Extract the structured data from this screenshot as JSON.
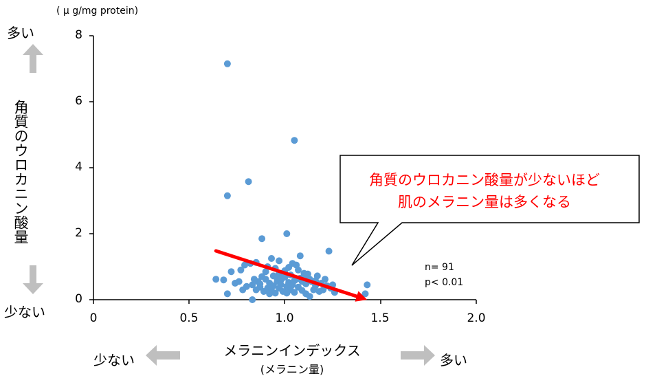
{
  "chart_data": {
    "type": "scatter",
    "title": "",
    "xlabel": "メラニンインデックス",
    "xlabel_sub": "(メラニン量)",
    "ylabel": "角質のウロカニン酸量",
    "y_unit": "( μ g/mg protein)",
    "xlim": [
      0,
      2.0
    ],
    "ylim": [
      0,
      8
    ],
    "x_ticks": [
      "0",
      "0.5",
      "1.0",
      "1.5",
      "2.0"
    ],
    "y_ticks": [
      "0",
      "2",
      "4",
      "6",
      "8"
    ],
    "grid": false,
    "point_color": "#5b9bd5",
    "trend_color": "#ff0000",
    "trend_line": {
      "x": [
        0.64,
        1.43
      ],
      "y": [
        1.48,
        0.0
      ],
      "arrow": true
    },
    "annotation": {
      "line1": "角質のウロカニン酸量が少ないほど",
      "line2": "肌のメラニン量は多くなる"
    },
    "stats": {
      "n": "n= 91",
      "p": "p< 0.01"
    },
    "axis_hints": {
      "y_high": "多い",
      "y_low": "少ない",
      "x_low": "少ない",
      "x_high": "多い"
    },
    "points": [
      {
        "x": 0.7,
        "y": 7.15
      },
      {
        "x": 1.05,
        "y": 4.83
      },
      {
        "x": 0.81,
        "y": 3.58
      },
      {
        "x": 0.7,
        "y": 3.15
      },
      {
        "x": 1.01,
        "y": 2.0
      },
      {
        "x": 0.88,
        "y": 1.85
      },
      {
        "x": 1.23,
        "y": 1.47
      },
      {
        "x": 1.08,
        "y": 1.33
      },
      {
        "x": 0.93,
        "y": 1.25
      },
      {
        "x": 0.97,
        "y": 1.18
      },
      {
        "x": 1.04,
        "y": 1.1
      },
      {
        "x": 1.06,
        "y": 1.05
      },
      {
        "x": 0.82,
        "y": 1.1
      },
      {
        "x": 0.85,
        "y": 1.13
      },
      {
        "x": 0.79,
        "y": 1.05
      },
      {
        "x": 0.91,
        "y": 1.0
      },
      {
        "x": 0.95,
        "y": 0.95
      },
      {
        "x": 1.02,
        "y": 0.98
      },
      {
        "x": 1.1,
        "y": 0.8
      },
      {
        "x": 1.12,
        "y": 0.78
      },
      {
        "x": 1.17,
        "y": 0.72
      },
      {
        "x": 0.72,
        "y": 0.85
      },
      {
        "x": 0.77,
        "y": 0.9
      },
      {
        "x": 0.64,
        "y": 0.62
      },
      {
        "x": 0.68,
        "y": 0.6
      },
      {
        "x": 0.76,
        "y": 0.55
      },
      {
        "x": 0.83,
        "y": 0.45
      },
      {
        "x": 0.86,
        "y": 0.55
      },
      {
        "x": 0.88,
        "y": 0.7
      },
      {
        "x": 0.9,
        "y": 0.62
      },
      {
        "x": 0.92,
        "y": 0.5
      },
      {
        "x": 0.94,
        "y": 0.42
      },
      {
        "x": 0.96,
        "y": 0.55
      },
      {
        "x": 0.98,
        "y": 0.6
      },
      {
        "x": 1.0,
        "y": 0.68
      },
      {
        "x": 1.03,
        "y": 0.75
      },
      {
        "x": 1.06,
        "y": 0.62
      },
      {
        "x": 1.09,
        "y": 0.55
      },
      {
        "x": 1.11,
        "y": 0.48
      },
      {
        "x": 1.14,
        "y": 0.55
      },
      {
        "x": 1.16,
        "y": 0.42
      },
      {
        "x": 1.19,
        "y": 0.5
      },
      {
        "x": 1.21,
        "y": 0.62
      },
      {
        "x": 1.24,
        "y": 0.35
      },
      {
        "x": 1.26,
        "y": 0.22
      },
      {
        "x": 1.25,
        "y": 0.45
      },
      {
        "x": 1.43,
        "y": 0.45
      },
      {
        "x": 1.42,
        "y": 0.18
      },
      {
        "x": 0.7,
        "y": 0.18
      },
      {
        "x": 0.83,
        "y": 0.0
      },
      {
        "x": 0.85,
        "y": 0.3
      },
      {
        "x": 0.87,
        "y": 0.38
      },
      {
        "x": 0.89,
        "y": 0.25
      },
      {
        "x": 0.91,
        "y": 0.35
      },
      {
        "x": 0.93,
        "y": 0.28
      },
      {
        "x": 0.95,
        "y": 0.2
      },
      {
        "x": 0.97,
        "y": 0.35
      },
      {
        "x": 0.99,
        "y": 0.25
      },
      {
        "x": 1.01,
        "y": 0.4
      },
      {
        "x": 1.03,
        "y": 0.3
      },
      {
        "x": 1.05,
        "y": 0.22
      },
      {
        "x": 1.07,
        "y": 0.38
      },
      {
        "x": 1.09,
        "y": 0.28
      },
      {
        "x": 1.11,
        "y": 0.18
      },
      {
        "x": 1.13,
        "y": 0.1
      },
      {
        "x": 1.15,
        "y": 0.3
      },
      {
        "x": 1.18,
        "y": 0.25
      },
      {
        "x": 0.8,
        "y": 0.4
      },
      {
        "x": 0.78,
        "y": 0.3
      },
      {
        "x": 0.74,
        "y": 0.5
      },
      {
        "x": 0.97,
        "y": 0.8
      },
      {
        "x": 1.0,
        "y": 0.88
      },
      {
        "x": 0.94,
        "y": 0.72
      },
      {
        "x": 1.07,
        "y": 0.9
      },
      {
        "x": 1.13,
        "y": 0.62
      },
      {
        "x": 0.9,
        "y": 0.85
      },
      {
        "x": 1.02,
        "y": 0.52
      },
      {
        "x": 0.98,
        "y": 0.45
      },
      {
        "x": 1.04,
        "y": 0.45
      },
      {
        "x": 0.92,
        "y": 0.18
      },
      {
        "x": 1.08,
        "y": 0.65
      },
      {
        "x": 0.96,
        "y": 0.65
      },
      {
        "x": 1.2,
        "y": 0.3
      },
      {
        "x": 1.22,
        "y": 0.42
      },
      {
        "x": 0.84,
        "y": 0.62
      },
      {
        "x": 1.05,
        "y": 0.58
      },
      {
        "x": 0.99,
        "y": 0.72
      },
      {
        "x": 1.1,
        "y": 0.7
      },
      {
        "x": 0.87,
        "y": 0.48
      },
      {
        "x": 1.01,
        "y": 0.2
      },
      {
        "x": 1.16,
        "y": 0.58
      }
    ]
  }
}
